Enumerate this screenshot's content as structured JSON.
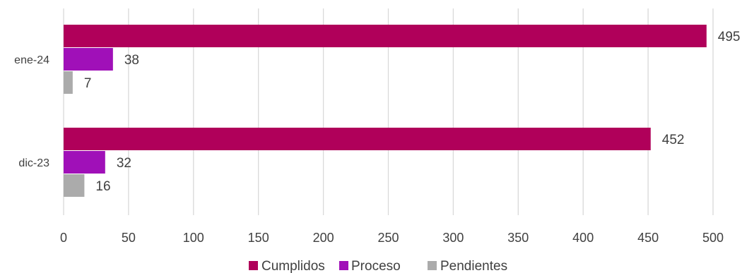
{
  "chart_data": {
    "type": "bar",
    "orientation": "horizontal",
    "categories": [
      "ene-24",
      "dic-23"
    ],
    "series": [
      {
        "name": "Cumplidos",
        "color": "#B0005A",
        "values": [
          495,
          452
        ]
      },
      {
        "name": "Proceso",
        "color": "#A010B8",
        "values": [
          38,
          32
        ]
      },
      {
        "name": "Pendientes",
        "color": "#ABABAB",
        "values": [
          7,
          16
        ]
      }
    ],
    "xlim": [
      0,
      500
    ],
    "xticks": [
      "0",
      "50",
      "100",
      "150",
      "200",
      "250",
      "300",
      "350",
      "400",
      "450",
      "500"
    ],
    "grid": true,
    "legend_position": "bottom"
  }
}
